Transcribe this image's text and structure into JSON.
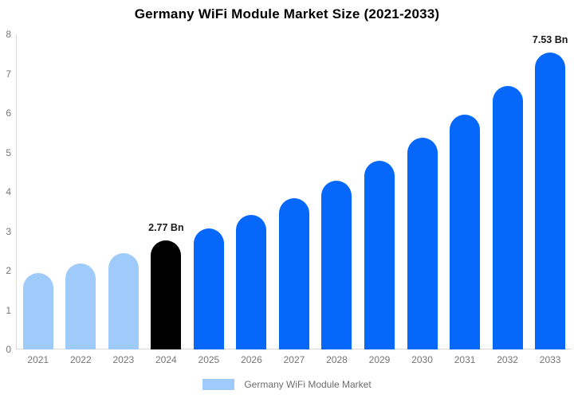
{
  "chart_data": {
    "type": "bar",
    "title": "Germany WiFi Module Market Size (2021-2033)",
    "unit": "Bn",
    "categories": [
      "2021",
      "2022",
      "2023",
      "2024",
      "2025",
      "2026",
      "2027",
      "2028",
      "2029",
      "2030",
      "2031",
      "2032",
      "2033"
    ],
    "values": [
      1.93,
      2.18,
      2.45,
      2.77,
      3.07,
      3.42,
      3.84,
      4.29,
      4.79,
      5.38,
      5.97,
      6.69,
      7.53
    ],
    "point_labels": [
      "",
      "",
      "",
      "2.77 Bn",
      "",
      "",
      "",
      "",
      "",
      "",
      "",
      "",
      "7.53 Bn"
    ],
    "bar_colors": [
      "#9ecbfa",
      "#9ecbfa",
      "#9ecbfa",
      "#000000",
      "#0667fb",
      "#0667fb",
      "#0667fb",
      "#0667fb",
      "#0667fb",
      "#0667fb",
      "#0667fb",
      "#0667fb",
      "#0667fb"
    ],
    "ylim": [
      0,
      8
    ],
    "yticks": [
      0,
      1,
      2,
      3,
      4,
      5,
      6,
      7,
      8
    ],
    "grid": false,
    "xlabel": "",
    "ylabel": "",
    "legend": {
      "label": "Germany WiFi Module Market",
      "swatch_color": "#9ecbfa",
      "position": "bottom"
    },
    "colors": {
      "historical_bar": "#9ecbfa",
      "base_year_bar": "#000000",
      "forecast_bar": "#0667fb",
      "axis_line": "#d9d9d9",
      "tick_text": "#757575",
      "value_label_text": "#1a1a1a",
      "legend_text": "#6e6e6e"
    }
  }
}
